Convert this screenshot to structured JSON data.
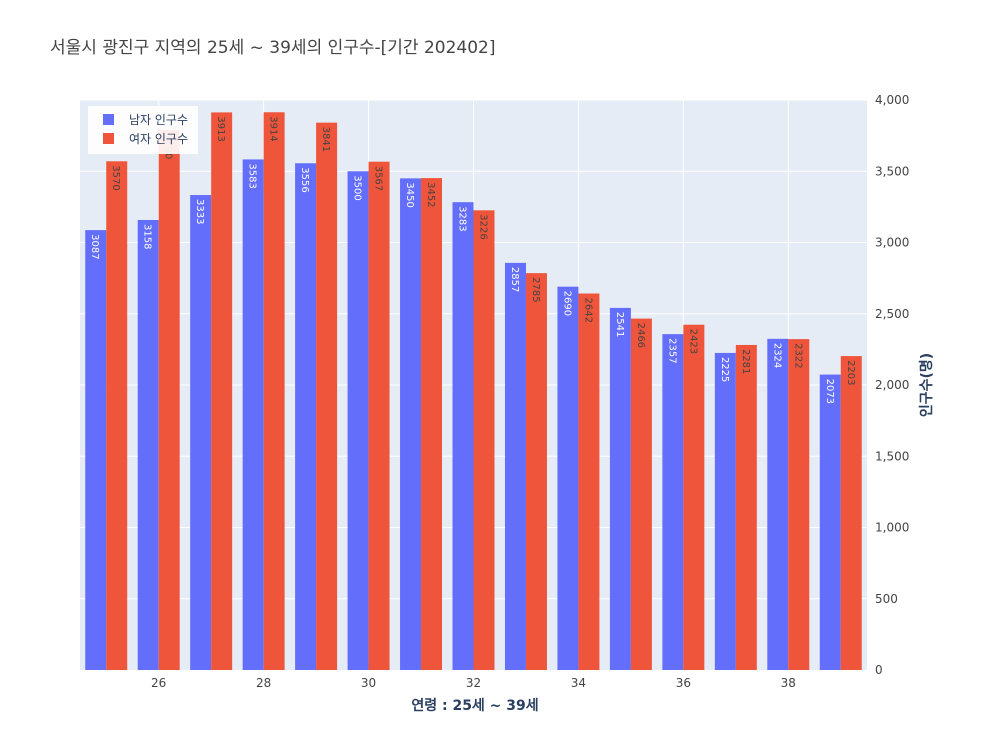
{
  "chart_data": {
    "type": "bar",
    "title": "서울시 광진구 지역의 25세 ~ 39세의 인구수-[기간 202402]",
    "xlabel": "연령 : 25세 ~ 39세",
    "ylabel": "인구수(명)",
    "x": [
      25,
      26,
      27,
      28,
      29,
      30,
      31,
      32,
      33,
      34,
      35,
      36,
      37,
      38,
      39
    ],
    "xticks": [
      26,
      28,
      30,
      32,
      34,
      36,
      38
    ],
    "yticks": [
      0,
      500,
      1000,
      1500,
      2000,
      2500,
      3000,
      3500,
      4000
    ],
    "ylim": [
      0,
      4000
    ],
    "yaxis_side": "right",
    "legend_position": "top-left",
    "grid": true,
    "series": [
      {
        "name": "남자 인구수",
        "color": "#636efa",
        "label_color": "#ffffff",
        "values": [
          3087,
          3158,
          3333,
          3583,
          3556,
          3500,
          3450,
          3283,
          2857,
          2690,
          2541,
          2357,
          2225,
          2324,
          2073
        ]
      },
      {
        "name": "여자 인구수",
        "color": "#ef553b",
        "label_color": "#444444",
        "values": [
          3570,
          3790,
          3913,
          3914,
          3841,
          3567,
          3452,
          3226,
          2785,
          2642,
          2466,
          2423,
          2281,
          2322,
          2203
        ]
      }
    ]
  }
}
